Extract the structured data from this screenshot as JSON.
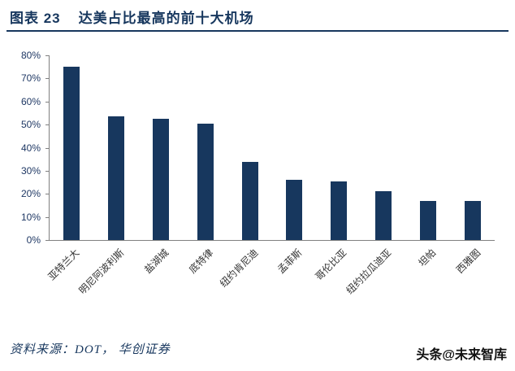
{
  "header": {
    "figure_label": "图表 23",
    "title": "达美占比最高的前十大机场"
  },
  "footer": {
    "source": "资料来源：DOT， 华创证券",
    "watermark": "头条@未来智库"
  },
  "colors": {
    "accent": "#17375E",
    "bar": "#17375E",
    "axis": "#808080"
  },
  "chart_data": {
    "type": "bar",
    "title": "达美占比最高的前十大机场",
    "categories": [
      "亚特兰大",
      "明尼阿波利斯",
      "盐湖城",
      "底特律",
      "纽约肯尼迪",
      "孟菲斯",
      "哥伦比亚",
      "纽约拉瓜迪亚",
      "坦帕",
      "西雅图"
    ],
    "values": [
      75,
      53.5,
      52.5,
      50.5,
      34,
      26,
      25.5,
      21,
      17,
      17
    ],
    "xlabel": "",
    "ylabel": "",
    "ylim": [
      0,
      80
    ],
    "ytick_step": 10,
    "ytick_suffix": "%",
    "grid": false,
    "legend": "none",
    "bar_color": "#17375E"
  }
}
